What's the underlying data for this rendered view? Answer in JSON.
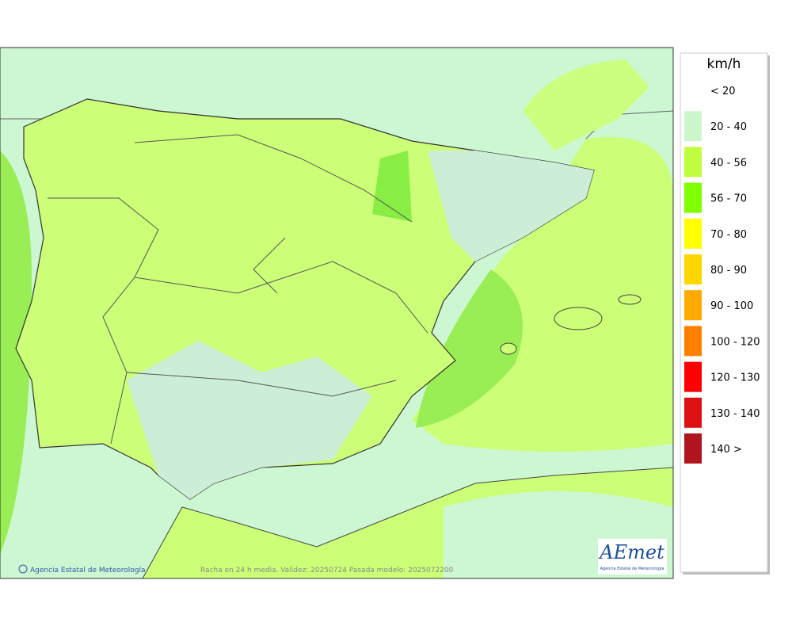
{
  "legend": {
    "title": "km/h",
    "items": [
      {
        "label": "< 20"
      },
      {
        "label": "20 - 40",
        "color": "#ccf7cc"
      },
      {
        "label": "40 - 56",
        "color": "#bfff40"
      },
      {
        "label": "56 - 70",
        "color": "#7fff00"
      },
      {
        "label": "70 - 80",
        "color": "#ffff00"
      },
      {
        "label": "80 - 90",
        "color": "#ffd700"
      },
      {
        "label": "90 - 100",
        "color": "#ffaa00"
      },
      {
        "label": "100 - 120",
        "color": "#ff8000"
      },
      {
        "label": "120 - 130",
        "color": "#ff0000"
      },
      {
        "label": "130 - 140",
        "color": "#dd1111"
      },
      {
        "label": "140 >",
        "color": "#b0141e"
      }
    ]
  },
  "map": {
    "credit": "Agencia Estatal de Meteorología",
    "caption": "Racha en 24 h media. Validez: 20250724 Pasada modelo: 2025072200"
  },
  "logo": {
    "text": "AEmet",
    "subtitle": "Agencia Estatal de Meteorología"
  }
}
